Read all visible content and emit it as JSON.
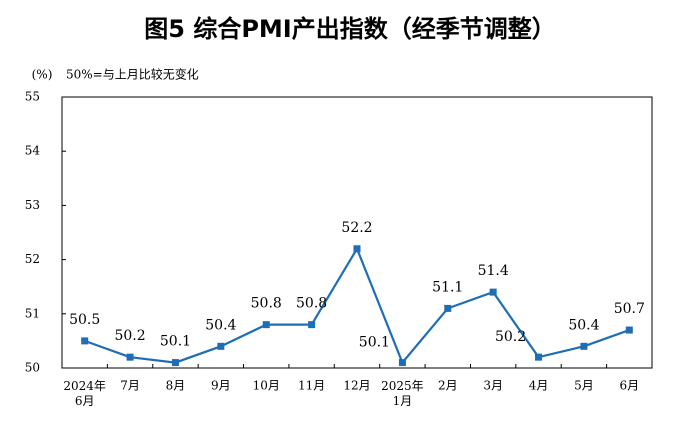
{
  "chart_data": {
    "type": "line",
    "title": "图5  综合PMI产出指数（经季节调整）",
    "y_unit": "(%)",
    "note": "50%=与上月比较无变化",
    "categories": [
      "2024年\n6月",
      "7月",
      "8月",
      "9月",
      "10月",
      "11月",
      "12月",
      "2025年\n1月",
      "2月",
      "3月",
      "4月",
      "5月",
      "6月"
    ],
    "series": [
      {
        "name": "综合PMI产出指数",
        "color": "#1f6db5",
        "values": [
          50.5,
          50.2,
          50.1,
          50.4,
          50.8,
          50.8,
          52.2,
          50.1,
          51.1,
          51.4,
          50.2,
          50.4,
          50.7
        ]
      }
    ],
    "ylim": [
      50,
      55
    ],
    "yticks": [
      50,
      51,
      52,
      53,
      54,
      55
    ],
    "grid": false
  }
}
